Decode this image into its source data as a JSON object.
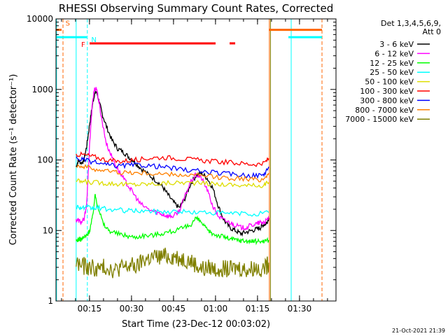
{
  "chart_data": {
    "type": "line",
    "title": "RHESSI Observing Summary Count Rates, Corrected",
    "xlabel": "Start Time (23-Dec-12 00:03:02)",
    "ylabel": "Corrected Count Rate (s⁻¹ detector⁻¹)",
    "x_unit": "minutes after 00:03:02 (axis shows clock time)",
    "xlim": [
      0,
      100
    ],
    "ylim": [
      1,
      10000
    ],
    "y_scale": "log",
    "x_ticks": [
      {
        "minute": 11.97,
        "label": "00:15"
      },
      {
        "minute": 26.97,
        "label": "00:30"
      },
      {
        "minute": 41.97,
        "label": "00:45"
      },
      {
        "minute": 56.97,
        "label": "01:00"
      },
      {
        "minute": 71.97,
        "label": "01:15"
      },
      {
        "minute": 86.97,
        "label": "01:30"
      }
    ],
    "y_ticks": [
      {
        "value": 1,
        "label": "1"
      },
      {
        "value": 10,
        "label": "10"
      },
      {
        "value": 100,
        "label": "100"
      },
      {
        "value": 1000,
        "label": "1000"
      },
      {
        "value": 10000,
        "label": "10000"
      }
    ],
    "legend": {
      "placement": "right",
      "header": [
        "Det 1,3,4,5,6,9,",
        "Att 0"
      ],
      "entries": [
        {
          "label": "3 - 6 keV",
          "color": "#000000"
        },
        {
          "label": "6 - 12 keV",
          "color": "#ff00ff"
        },
        {
          "label": "12 - 25 keV",
          "color": "#00ff00"
        },
        {
          "label": "25 - 50 keV",
          "color": "#00ffff"
        },
        {
          "label": "50 - 100 keV",
          "color": "#dddd00"
        },
        {
          "label": "100 - 300 keV",
          "color": "#ff0000"
        },
        {
          "label": "300 - 800 keV",
          "color": "#0000ff"
        },
        {
          "label": "800 - 7000 keV",
          "color": "#ff8000"
        },
        {
          "label": "7000 - 15000 keV",
          "color": "#808000"
        }
      ]
    },
    "flag_bars": [
      {
        "flag": "S",
        "color": "#ff6600",
        "spans": [
          [
            0,
            2
          ],
          [
            76,
            95
          ]
        ],
        "level": 7000
      },
      {
        "flag": "N",
        "color": "#00ffff",
        "spans": [
          [
            0,
            11
          ],
          [
            83,
            95
          ]
        ],
        "level": 5500
      },
      {
        "flag": "F",
        "color": "#ff0000",
        "spans": [
          [
            12,
            57
          ],
          [
            62,
            64
          ]
        ],
        "level": 4500
      }
    ],
    "vertical_markers": [
      {
        "minute": 0.2,
        "color": "#00ffff",
        "style": "solid"
      },
      {
        "minute": 2.5,
        "color": "#ff6600",
        "style": "dashed"
      },
      {
        "minute": 7.2,
        "color": "#00ffff",
        "style": "solid"
      },
      {
        "minute": 11.2,
        "color": "#00ffff",
        "style": "dashed"
      },
      {
        "minute": 76.2,
        "color": "#ff6600",
        "style": "solid"
      },
      {
        "minute": 76.6,
        "color": "#808000",
        "style": "solid"
      },
      {
        "minute": 84.0,
        "color": "#00ffff",
        "style": "solid"
      },
      {
        "minute": 95.0,
        "color": "#ff6600",
        "style": "dashed"
      }
    ],
    "series": [
      {
        "name": "3 - 6 keV",
        "color": "#000000",
        "x": [
          7.2,
          8,
          9,
          10,
          11,
          12,
          13,
          13.7,
          14.5,
          15.5,
          16.5,
          18,
          20,
          22,
          24,
          26,
          28,
          30,
          33,
          36,
          38,
          40,
          42,
          44,
          46,
          48,
          50,
          52,
          54,
          56,
          58,
          60,
          62,
          64,
          66,
          68,
          70,
          72,
          73,
          74,
          75,
          76
        ],
        "y": [
          80,
          100,
          90,
          100,
          160,
          320,
          600,
          850,
          930,
          650,
          450,
          300,
          190,
          145,
          130,
          110,
          95,
          78,
          62,
          50,
          42,
          32,
          25,
          21,
          28,
          45,
          60,
          65,
          55,
          40,
          22,
          14,
          11,
          10,
          9,
          9.5,
          10,
          10.5,
          11,
          12,
          12.5,
          15
        ]
      },
      {
        "name": "6 - 12 keV",
        "color": "#ff00ff",
        "x": [
          7.2,
          8,
          9,
          10,
          11,
          12,
          13,
          13.7,
          14.5,
          15.5,
          16.5,
          18,
          20,
          22,
          24,
          26,
          28,
          30,
          33,
          36,
          38,
          40,
          42,
          44,
          46,
          48,
          50,
          52,
          54,
          56,
          58,
          60,
          62,
          64,
          66,
          68,
          70,
          72,
          73,
          74,
          75,
          76
        ],
        "y": [
          14,
          14,
          13,
          14,
          25,
          160,
          650,
          1000,
          1050,
          600,
          350,
          170,
          110,
          75,
          55,
          42,
          32,
          24,
          20,
          18,
          17,
          16,
          16,
          19,
          30,
          48,
          62,
          55,
          38,
          22,
          16,
          14,
          13,
          12,
          11,
          11,
          12,
          12.5,
          13,
          13,
          13.5,
          15
        ]
      },
      {
        "name": "12 - 25 keV",
        "color": "#00ff00",
        "x": [
          7.2,
          8,
          9,
          10,
          11,
          12,
          13,
          14,
          15,
          17,
          19,
          22,
          25,
          28,
          31,
          34,
          37,
          40,
          43,
          46,
          48,
          50,
          52,
          54,
          56,
          58,
          60,
          62,
          64,
          66,
          68,
          70,
          72,
          74,
          76
        ],
        "y": [
          7,
          7.5,
          7.5,
          8,
          8.5,
          10,
          15,
          32,
          22,
          12,
          10,
          9,
          8.5,
          8,
          8.5,
          8.5,
          9,
          9.5,
          10,
          11,
          12,
          15,
          13,
          10,
          9,
          8.5,
          8.2,
          7.6,
          7.4,
          7.2,
          7.1,
          7,
          7,
          7.1,
          7.3
        ]
      },
      {
        "name": "25 - 50 keV",
        "color": "#00ffff",
        "x": [
          7.2,
          9,
          11,
          13,
          15,
          18,
          22,
          26,
          30,
          35,
          40,
          45,
          50,
          55,
          60,
          65,
          70,
          76
        ],
        "y": [
          22,
          21,
          21,
          20.5,
          21,
          20,
          19.5,
          19,
          19,
          18.5,
          18.5,
          18.5,
          18,
          18,
          17.5,
          17.5,
          17,
          18
        ]
      },
      {
        "name": "50 - 100 keV",
        "color": "#dddd00",
        "x": [
          7.2,
          10,
          14,
          18,
          22,
          26,
          30,
          35,
          40,
          45,
          50,
          55,
          60,
          65,
          70,
          74,
          76
        ],
        "y": [
          50,
          49,
          48,
          47,
          46,
          45,
          45,
          46,
          47,
          48,
          47,
          46,
          45,
          44,
          43,
          44,
          48
        ]
      },
      {
        "name": "100 - 300 keV",
        "color": "#ff0000",
        "x": [
          7.2,
          10,
          14,
          18,
          22,
          26,
          30,
          35,
          40,
          45,
          50,
          55,
          60,
          65,
          70,
          74,
          76
        ],
        "y": [
          120,
          118,
          110,
          100,
          95,
          98,
          102,
          108,
          108,
          104,
          100,
          96,
          93,
          90,
          87,
          88,
          105
        ]
      },
      {
        "name": "300 - 800 keV",
        "color": "#0000ff",
        "x": [
          7.2,
          10,
          14,
          18,
          22,
          26,
          30,
          35,
          40,
          45,
          50,
          55,
          60,
          65,
          70,
          74,
          76
        ],
        "y": [
          105,
          100,
          92,
          85,
          82,
          84,
          85,
          82,
          78,
          73,
          70,
          67,
          64,
          62,
          60,
          61,
          80
        ]
      },
      {
        "name": "800 - 7000 keV",
        "color": "#ff8000",
        "x": [
          7.2,
          10,
          14,
          18,
          22,
          26,
          30,
          35,
          40,
          45,
          50,
          55,
          60,
          65,
          70,
          74,
          76
        ],
        "y": [
          85,
          80,
          74,
          70,
          67,
          66,
          65,
          64,
          62,
          61,
          60,
          58,
          56,
          55,
          53,
          53,
          65
        ]
      },
      {
        "name": "7000 - 15000 keV",
        "color": "#808000",
        "x": [
          7.2,
          9,
          11,
          13,
          15,
          17,
          19,
          21,
          23,
          25,
          27,
          29,
          31,
          33,
          35,
          37,
          39,
          41,
          43,
          45,
          47,
          49,
          51,
          53,
          55,
          57,
          59,
          61,
          63,
          65,
          67,
          69,
          71,
          73,
          75,
          76
        ],
        "y": [
          3.5,
          3.2,
          3,
          3,
          2.8,
          3,
          3,
          2.7,
          3,
          3,
          3.2,
          3,
          3.8,
          4,
          4.2,
          4.2,
          4.3,
          4.3,
          4.2,
          4,
          3.8,
          3.5,
          3,
          2.8,
          3,
          2.8,
          3,
          2.8,
          2.8,
          3,
          2.8,
          2.8,
          3,
          2.9,
          3,
          3.5
        ]
      }
    ],
    "footer_date": "21-Oct-2021 21:39"
  }
}
